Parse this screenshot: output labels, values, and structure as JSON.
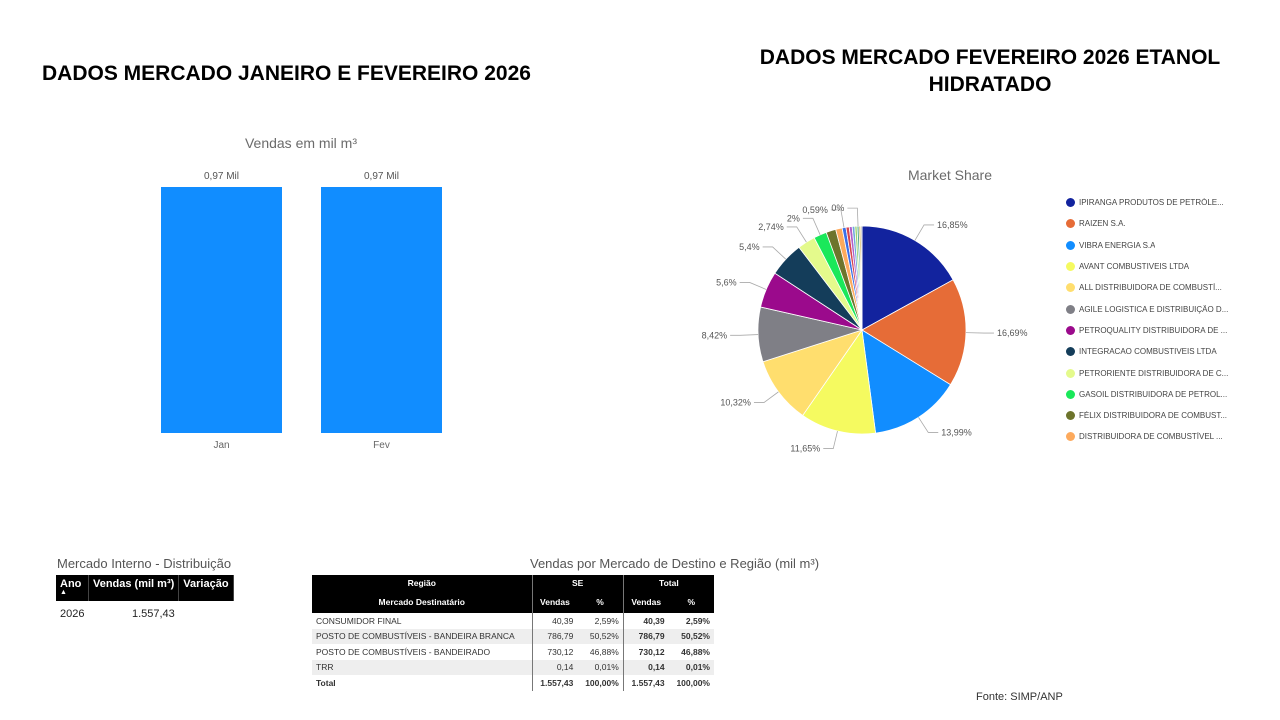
{
  "titles": {
    "left": "DADOS MERCADO JANEIRO E FEVEREIRO 2026",
    "right_line1": "DADOS MERCADO FEVEREIRO 2026 ETANOL",
    "right_line2": "HIDRATADO"
  },
  "chart_data": [
    {
      "type": "bar",
      "title": "Vendas  em mil m³",
      "categories": [
        "Jan",
        "Fev"
      ],
      "values": [
        0.97,
        0.97
      ],
      "data_labels": [
        "0,97 Mil",
        "0,97 Mil"
      ],
      "color": "#118DFF",
      "grid": false
    },
    {
      "type": "pie",
      "title": "Market Share",
      "legend_position": "right",
      "slices": [
        {
          "name": "IPIRANGA PRODUTOS DE PETRÓLE...",
          "value": 16.85,
          "label": "16,85%",
          "color": "#12239E"
        },
        {
          "name": "RAIZEN S.A.",
          "value": 16.69,
          "label": "16,69%",
          "color": "#E66C37"
        },
        {
          "name": "VIBRA ENERGIA S.A",
          "value": 13.99,
          "label": "13,99%",
          "color": "#118DFF"
        },
        {
          "name": "AVANT COMBUSTIVEIS LTDA",
          "value": 11.65,
          "label": "11,65%",
          "color": "#F5FA60"
        },
        {
          "name": "ALL DISTRIBUIDORA DE COMBUSTÍ...",
          "value": 10.32,
          "label": "10,32%",
          "color": "#FFDE6E"
        },
        {
          "name": "AGILE LOGISTICA E DISTRIBUIÇÃO D...",
          "value": 8.42,
          "label": "8,42%",
          "color": "#7F7F86"
        },
        {
          "name": "PETROQUALITY DISTRIBUIDORA DE ...",
          "value": 5.6,
          "label": "5,6%",
          "color": "#9B0A8C"
        },
        {
          "name": "INTEGRACAO COMBUSTIVEIS LTDA",
          "value": 5.4,
          "label": "5,4%",
          "color": "#143D5A"
        },
        {
          "name": "PETRORIENTE DISTRIBUIDORA DE C...",
          "value": 2.74,
          "label": "2,74%",
          "color": "#E4FA8C"
        },
        {
          "name": "GASOIL DISTRIBUIDORA DE PETROL...",
          "value": 2.0,
          "label": "2%",
          "color": "#1AE85A"
        },
        {
          "name": "FÉLIX DISTRIBUIDORA DE COMBUST...",
          "value": 1.5,
          "label": "",
          "color": "#6D742C"
        },
        {
          "name": "DISTRIBUIDORA DE COMBUSTÍVEL ...",
          "value": 1.0,
          "label": "",
          "color": "#FDAA5D"
        },
        {
          "name": "",
          "value": 0.59,
          "label": "0,59%",
          "color": "#3A6EE8"
        },
        {
          "name": "",
          "value": 0.5,
          "label": "",
          "color": "#D64550"
        },
        {
          "name": "",
          "value": 0.45,
          "label": "",
          "color": "#B060C8"
        },
        {
          "name": "",
          "value": 0.4,
          "label": "",
          "color": "#6FA8DC"
        },
        {
          "name": "",
          "value": 0.35,
          "label": "",
          "color": "#9AD66E"
        },
        {
          "name": "",
          "value": 0.3,
          "label": "0%",
          "color": "#4AA389"
        },
        {
          "name": "",
          "value": 0.25,
          "label": "",
          "color": "#C9A227"
        },
        {
          "name": "",
          "value": 0.2,
          "label": "",
          "color": "#A8A8A8"
        }
      ]
    }
  ],
  "mercado_interno": {
    "title": "Mercado Interno - Distribuição",
    "headers": [
      "Ano",
      "Vendas (mil m³)",
      "Variação"
    ],
    "sort_indicator": "▲",
    "rows": [
      [
        "2026",
        "1.557,43",
        ""
      ]
    ]
  },
  "vendas_destino": {
    "title": "Vendas por Mercado de Destino e Região (mil m³)",
    "header_row1": {
      "regiao": "Região",
      "se": "SE",
      "total": "Total"
    },
    "header_row2": {
      "mercado": "Mercado Destinatário",
      "vendas": "Vendas",
      "pct": "%",
      "vendas_total": "Vendas",
      "pct_total": "%"
    },
    "rows": [
      [
        "CONSUMIDOR FINAL",
        "40,39",
        "2,59%",
        "40,39",
        "2,59%"
      ],
      [
        "POSTO DE COMBUSTÍVEIS - BANDEIRA BRANCA",
        "786,79",
        "50,52%",
        "786,79",
        "50,52%"
      ],
      [
        "POSTO DE COMBUSTÍVEIS - BANDEIRADO",
        "730,12",
        "46,88%",
        "730,12",
        "46,88%"
      ],
      [
        "TRR",
        "0,14",
        "0,01%",
        "0,14",
        "0,01%"
      ]
    ],
    "total_row": [
      "Total",
      "1.557,43",
      "100,00%",
      "1.557,43",
      "100,00%"
    ]
  },
  "fonte": "Fonte: SIMP/ANP"
}
